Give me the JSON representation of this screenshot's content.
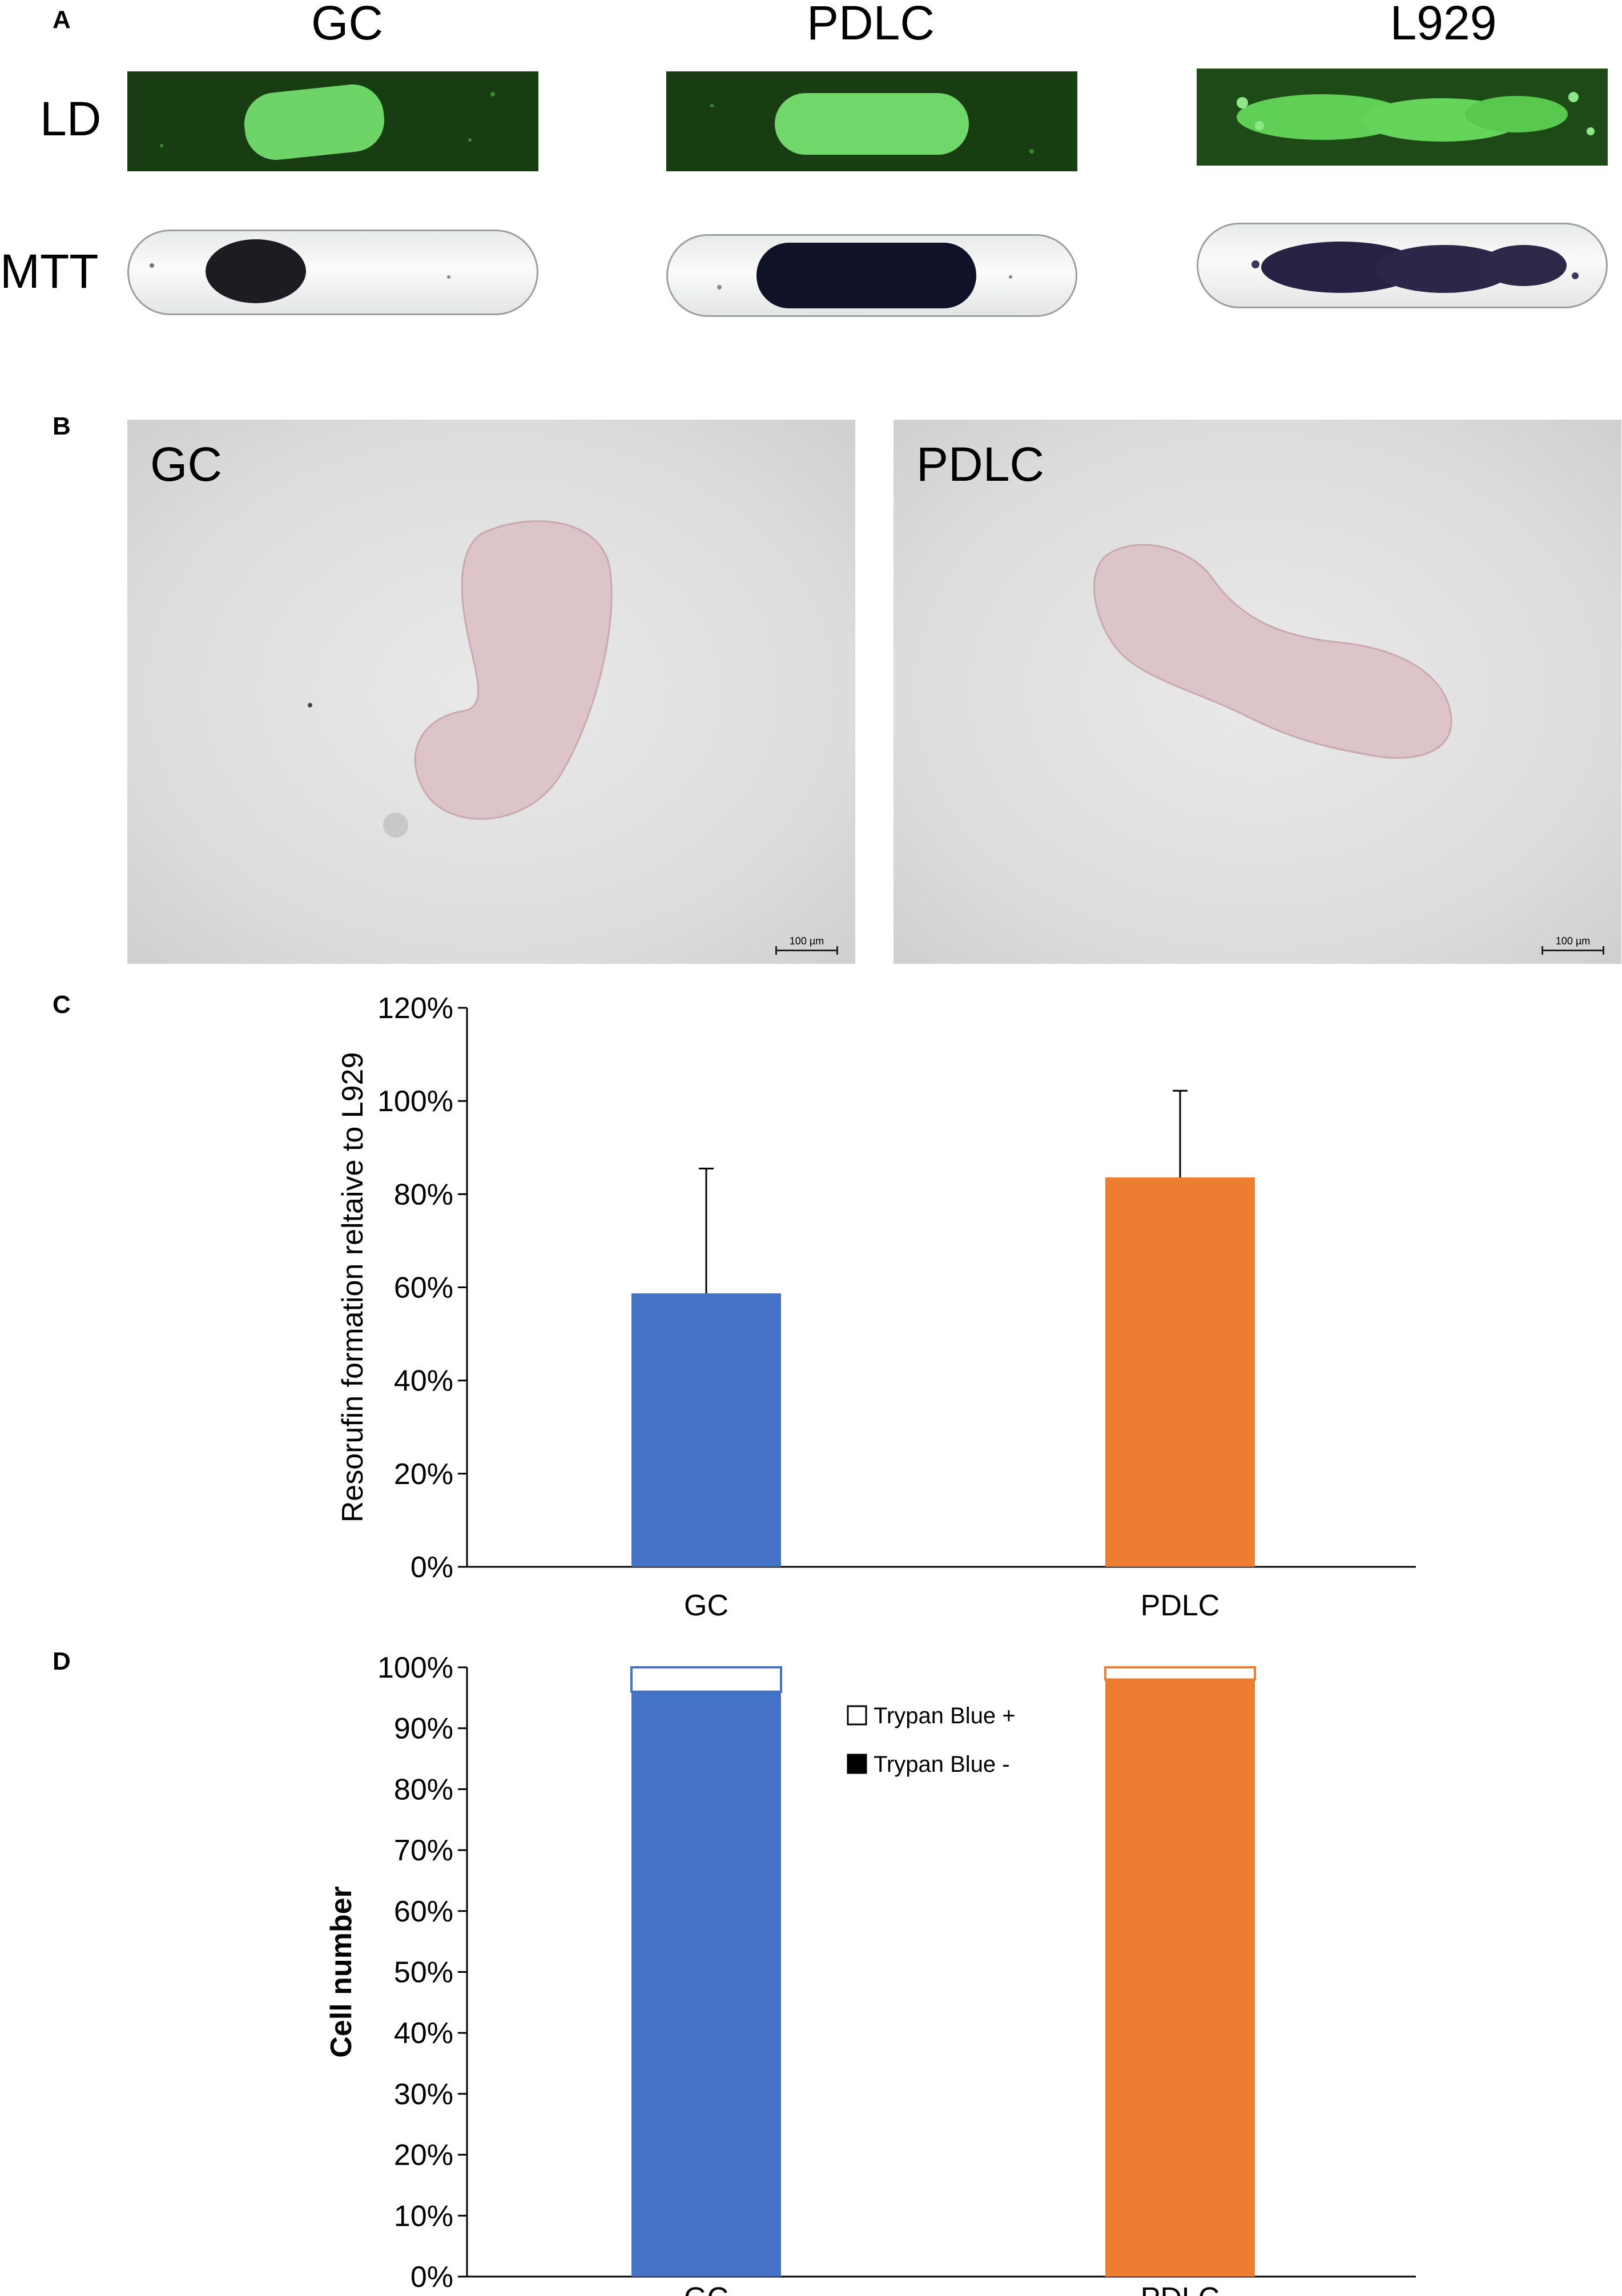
{
  "panel_a": {
    "letter": "A",
    "columns": [
      "GC",
      "PDLC",
      "L929"
    ],
    "rows": [
      "LD",
      "MTT"
    ]
  },
  "panel_b": {
    "letter": "B",
    "images": [
      {
        "label": "GC",
        "scale": "100 µm"
      },
      {
        "label": "PDLC",
        "scale": "100 µm"
      }
    ]
  },
  "panel_c": {
    "letter": "C"
  },
  "panel_d": {
    "letter": "D"
  },
  "colors": {
    "gc": "#4472c4",
    "pdlc": "#ed7d31",
    "axis": "#000000"
  },
  "chart_data": [
    {
      "panel": "C",
      "type": "bar",
      "categories": [
        "GC",
        "PDLC"
      ],
      "values": [
        58.7,
        83.6
      ],
      "error_upper": [
        85.5,
        102.2
      ],
      "ylabel": "Resorufin formation reltaive to L929",
      "ylim": [
        0,
        120
      ],
      "yticks": [
        "0%",
        "20%",
        "40%",
        "60%",
        "80%",
        "100%",
        "120%"
      ],
      "grid": false
    },
    {
      "panel": "D",
      "type": "bar",
      "stacked": true,
      "categories": [
        "GC",
        "PDLC"
      ],
      "series": [
        {
          "name": "Trypan Blue -",
          "values": [
            96,
            98
          ]
        },
        {
          "name": "Trypan Blue +",
          "values": [
            4,
            2
          ]
        }
      ],
      "legend": [
        "Trypan Blue +",
        "Trypan Blue -"
      ],
      "legend_position": "top-center",
      "ylabel": "Cell number",
      "ylim": [
        0,
        100
      ],
      "yticks": [
        "0%",
        "10%",
        "20%",
        "30%",
        "40%",
        "50%",
        "60%",
        "70%",
        "80%",
        "90%",
        "100%"
      ],
      "grid": false
    }
  ]
}
